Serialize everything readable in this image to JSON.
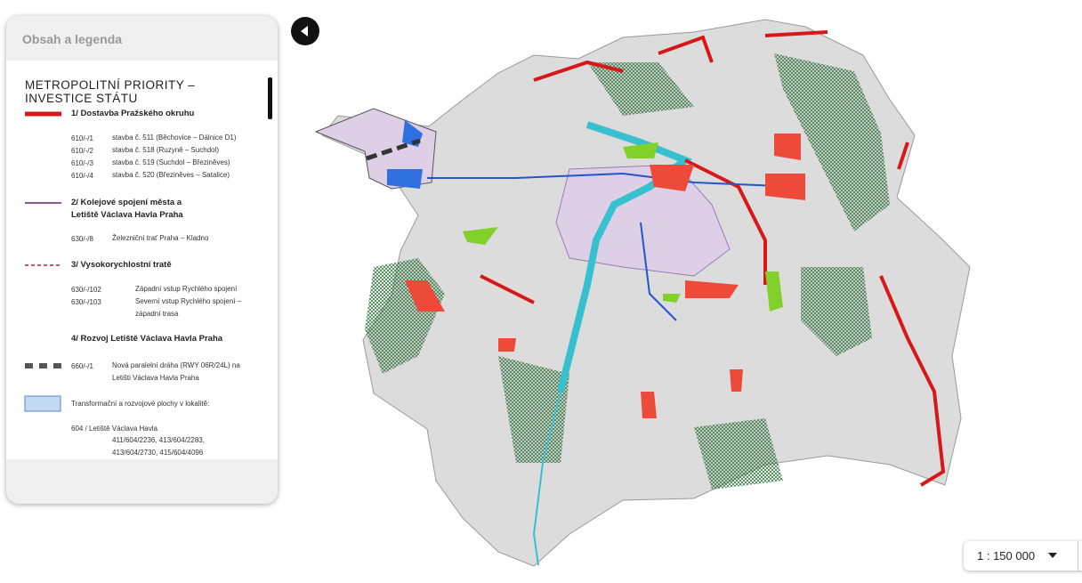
{
  "panel": {
    "title": "Obsah a legenda"
  },
  "legend": {
    "heading": "METROPOLITNÍ PRIORITY – INVESTICE STÁTU",
    "sections": [
      {
        "title": "1/ Dostavba Pražského okruhu",
        "items": [
          [
            "610/-/1",
            "stavba č. 511 (Běchovice – Dálnice D1)"
          ],
          [
            "610/-/2",
            "stavba č. 518 (Ruzyně – Suchdol)"
          ],
          [
            "610/-/3",
            "stavba č. 519 (Suchdol – Březiněves)"
          ],
          [
            "610/-/4",
            "stavba č. 520 (Březiněves – Satalice)"
          ]
        ]
      },
      {
        "title": "2/ Kolejové spojení města a Letiště Václava Havla Praha",
        "items": [
          [
            "630/-/8",
            "Železniční trať Praha – Kladno"
          ]
        ]
      },
      {
        "title": "3/ Vysokorychlostní tratě",
        "items": [
          [
            "630/-/102",
            "Západní vstup Rychlého spojení"
          ],
          [
            "630/-/103",
            "Severní vstup Rychlého spojení – západní trasa"
          ]
        ]
      },
      {
        "title": "4/ Rozvoj Letiště Václava Havla Praha",
        "items": [
          [
            "660/-/1",
            "Nová paralelní dráha (RWY 06R/24L) na Letišti Václava Havla Praha"
          ]
        ]
      }
    ],
    "transformation": "Transformační a rozvojové plochy v lokalitě:",
    "locality": "604 / Letiště Václava Havla",
    "locality_codes": "411/604/2236, 413/604/2283, 413/604/2730, 415/604/4096"
  },
  "scale": "1 : 150 000"
}
